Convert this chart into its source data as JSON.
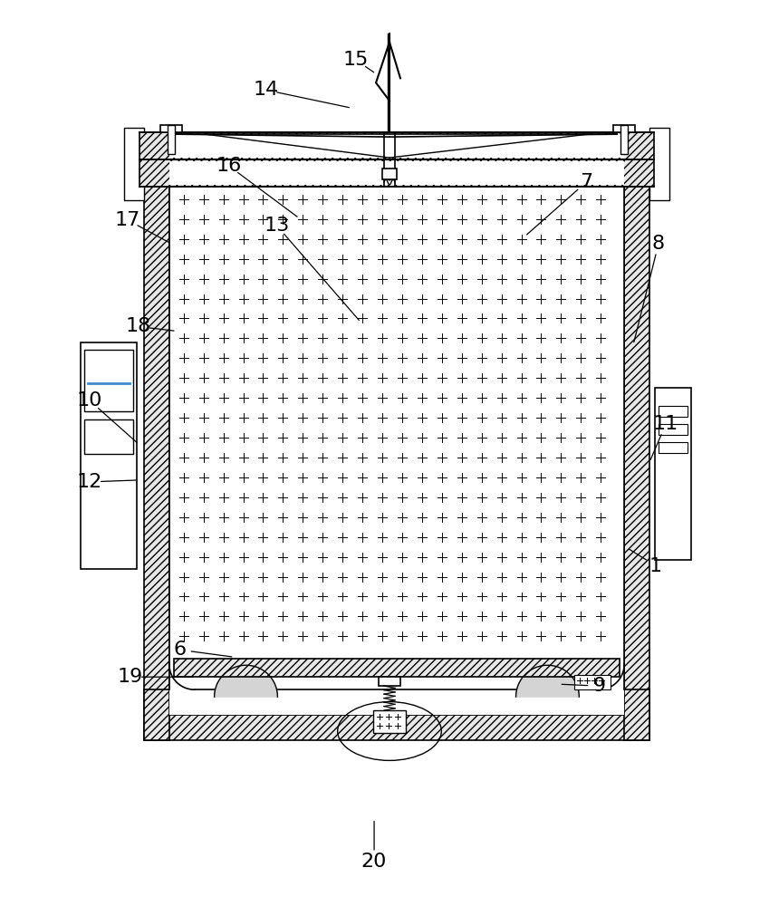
{
  "bg_color": "#ffffff",
  "lc": "#000000",
  "label_fontsize": 16,
  "labels": {
    "1": [
      725,
      625,
      693,
      605
    ],
    "6": [
      198,
      718,
      258,
      726
    ],
    "7": [
      648,
      200,
      580,
      260
    ],
    "8": [
      728,
      268,
      700,
      380
    ],
    "9": [
      662,
      758,
      618,
      756
    ],
    "10": [
      98,
      442,
      152,
      490
    ],
    "11": [
      736,
      468,
      718,
      510
    ],
    "12": [
      98,
      532,
      152,
      530
    ],
    "13": [
      305,
      248,
      398,
      355
    ],
    "14": [
      293,
      98,
      388,
      118
    ],
    "15": [
      393,
      65,
      415,
      80
    ],
    "16": [
      252,
      182,
      330,
      240
    ],
    "17": [
      140,
      242,
      188,
      268
    ],
    "18": [
      152,
      360,
      194,
      365
    ],
    "19": [
      143,
      748,
      215,
      748
    ],
    "20": [
      413,
      952,
      413,
      905
    ]
  }
}
